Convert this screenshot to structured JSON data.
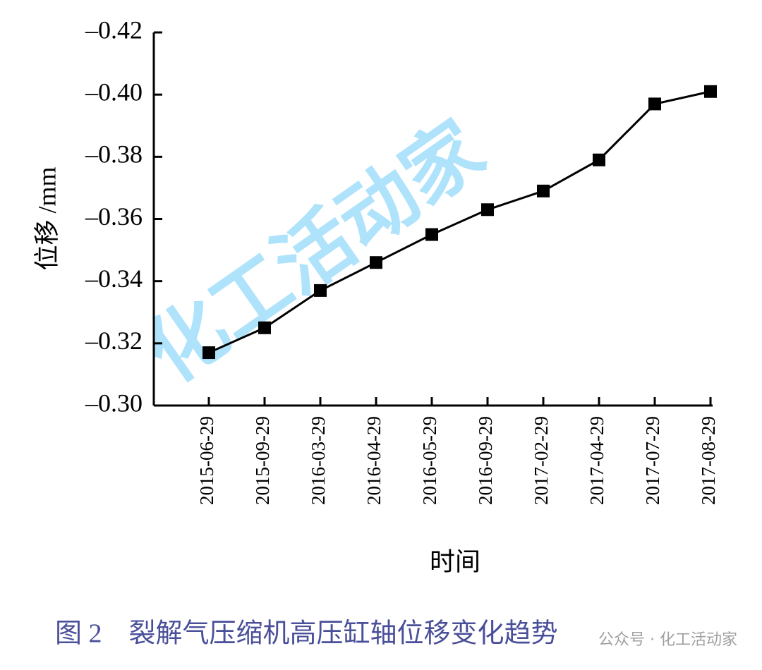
{
  "chart_data": {
    "type": "line",
    "categories": [
      "2015-06-29",
      "2015-09-29",
      "2016-03-29",
      "2016-04-29",
      "2016-05-29",
      "2016-09-29",
      "2017-02-29",
      "2017-04-29",
      "2017-07-29",
      "2017-08-29"
    ],
    "values": [
      -0.317,
      -0.325,
      -0.337,
      -0.346,
      -0.355,
      -0.363,
      -0.369,
      -0.379,
      -0.397,
      -0.401
    ],
    "color": "#000000",
    "ylim": [
      -0.3,
      -0.42
    ],
    "yticks": [
      {
        "value": -0.3,
        "label": "–0.30"
      },
      {
        "value": -0.32,
        "label": "–0.32"
      },
      {
        "value": -0.34,
        "label": "–0.34"
      },
      {
        "value": -0.36,
        "label": "–0.36"
      },
      {
        "value": -0.38,
        "label": "–0.38"
      },
      {
        "value": -0.4,
        "label": "–0.40"
      },
      {
        "value": -0.42,
        "label": "–0.42"
      }
    ],
    "ylabel": "位移 /mm",
    "xlabel": "时间",
    "caption": "图 2　裂解气压缩机高压缸轴位移变化趋势",
    "watermark": "化工活动家",
    "source": "公众号 · 化工活动家"
  }
}
